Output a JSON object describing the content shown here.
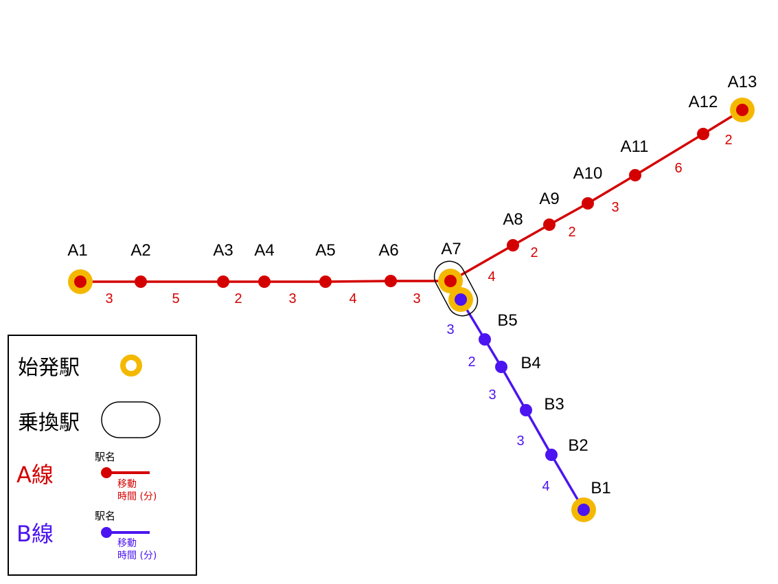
{
  "colors": {
    "line_a": "#d40000",
    "line_b": "#4b14f0",
    "origin": "#f5b800",
    "transfer_border": "#000000"
  },
  "line_a": {
    "stations": [
      "A1",
      "A2",
      "A3",
      "A4",
      "A5",
      "A6",
      "A7",
      "A8",
      "A9",
      "A10",
      "A11",
      "A12",
      "A13"
    ],
    "times": [
      "3",
      "5",
      "2",
      "3",
      "4",
      "3",
      "4",
      "2",
      "2",
      "3",
      "6",
      "2"
    ],
    "origin_stations": [
      "A1",
      "A13"
    ]
  },
  "line_b": {
    "stations": [
      "B5",
      "B4",
      "B3",
      "B2",
      "B1"
    ],
    "times": [
      "3",
      "2",
      "3",
      "3",
      "4"
    ],
    "origin_stations": [
      "B1"
    ]
  },
  "transfer": {
    "stations": [
      "A7"
    ]
  },
  "legend": {
    "origin_label": "始発駅",
    "transfer_label": "乗換駅",
    "line_a_label": "A線",
    "line_b_label": "B線",
    "station_name": "駅名",
    "travel_time_line1": "移動",
    "travel_time_line2": "時間 (分)"
  }
}
